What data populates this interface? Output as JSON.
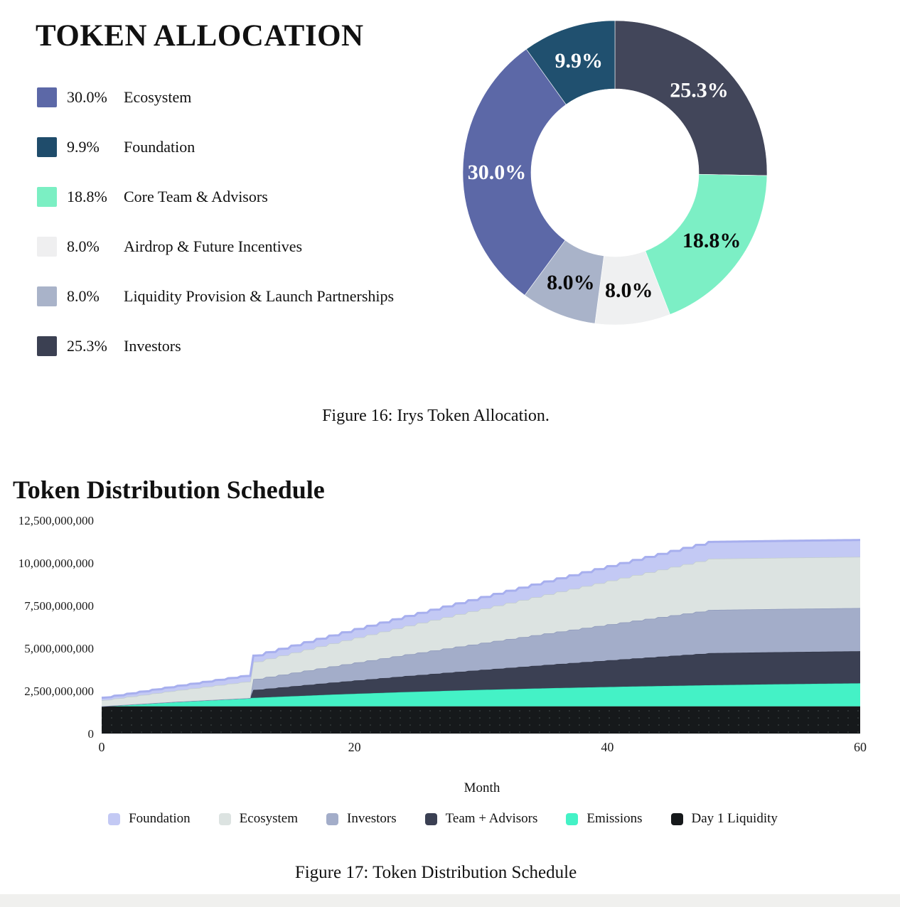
{
  "allocation": {
    "title": "TOKEN ALLOCATION",
    "caption": "Figure 16: Irys Token Allocation.",
    "legend": [
      {
        "pct": "30.0%",
        "label": "Ecosystem",
        "color": "#5C68A7"
      },
      {
        "pct": "9.9%",
        "label": "Foundation",
        "color": "#1F4C6B"
      },
      {
        "pct": "18.8%",
        "label": "Core Team & Advisors",
        "color": "#7BEFC3"
      },
      {
        "pct": "8.0%",
        "label": "Airdrop & Future Incentives",
        "color": "#EFEFF0"
      },
      {
        "pct": "8.0%",
        "label": "Liquidity Provision & Launch Partnerships",
        "color": "#A9B3C9"
      },
      {
        "pct": "25.3%",
        "label": "Investors",
        "color": "#3B4052"
      }
    ]
  },
  "schedule": {
    "title": "Token Distribution Schedule",
    "caption": "Figure 17: Token Distribution Schedule",
    "xlabel": "Month"
  },
  "chart_data": [
    {
      "type": "pie",
      "donut": true,
      "title": "TOKEN ALLOCATION",
      "legend_position": "left",
      "slices_clockwise_from_top": [
        {
          "label": "Investors",
          "value": 25.3,
          "pct_label": "25.3%",
          "color": "#42465A",
          "label_color": "#ffffff"
        },
        {
          "label": "Core Team & Advisors",
          "value": 18.8,
          "pct_label": "18.8%",
          "color": "#7CEFC5",
          "label_color": "#0a0a0a"
        },
        {
          "label": "Airdrop & Future Incentives",
          "value": 8.0,
          "pct_label": "8.0%",
          "color": "#EFF0F1",
          "label_color": "#0a0a0a"
        },
        {
          "label": "Liquidity Provision & Launch Partnerships",
          "value": 8.0,
          "pct_label": "8.0%",
          "color": "#A9B3C9",
          "label_color": "#0a0a0a"
        },
        {
          "label": "Ecosystem",
          "value": 30.0,
          "pct_label": "30.0%",
          "color": "#5C68A7",
          "label_color": "#ffffff"
        },
        {
          "label": "Foundation",
          "value": 9.9,
          "pct_label": "9.9%",
          "color": "#20506F",
          "label_color": "#ffffff"
        }
      ]
    },
    {
      "type": "area",
      "stacked": true,
      "title": "Token Distribution Schedule",
      "xlabel": "Month",
      "ylabel": "",
      "xlim": [
        0,
        60
      ],
      "ylim": [
        0,
        12500000000
      ],
      "grid": false,
      "legend_position": "bottom",
      "values_unit": "billions_of_tokens",
      "x_ticks": [
        {
          "value": 0,
          "label": "0"
        },
        {
          "value": 20,
          "label": "20"
        },
        {
          "value": 40,
          "label": "40"
        },
        {
          "value": 60,
          "label": "60"
        }
      ],
      "y_ticks": [
        {
          "value": 0.0,
          "label": "0"
        },
        {
          "value": 2.5,
          "label": "2,500,000,000"
        },
        {
          "value": 5.0,
          "label": "5,000,000,000"
        },
        {
          "value": 7.5,
          "label": "7,500,000,000"
        },
        {
          "value": 10.0,
          "label": "10,000,000,000"
        },
        {
          "value": 12.5,
          "label": "12,500,000,000"
        }
      ],
      "series_bottom_to_top": [
        {
          "name": "Day 1 Liquidity",
          "color": "#16191B",
          "stroke": "#16191B",
          "stroke_w": 0,
          "interp": "linear",
          "dotted_texture": true,
          "anchors": [
            [
              0,
              1.6
            ],
            [
              60,
              1.6
            ]
          ]
        },
        {
          "name": "Emissions",
          "color": "#44F2C6",
          "stroke": "#2EDDB2",
          "stroke_w": 1,
          "interp": "linear",
          "anchors": [
            [
              0,
              0
            ],
            [
              6,
              0.268
            ],
            [
              12,
              0.492
            ],
            [
              18,
              0.678
            ],
            [
              24,
              0.833
            ],
            [
              30,
              0.962
            ],
            [
              36,
              1.07
            ],
            [
              42,
              1.159
            ],
            [
              48,
              1.234
            ],
            [
              54,
              1.296
            ],
            [
              60,
              1.347
            ]
          ]
        },
        {
          "name": "Team + Advisors",
          "color": "#3B4053",
          "stroke": "#333748",
          "stroke_w": 1.5,
          "interp": "step",
          "anchors": [
            [
              0,
              0
            ],
            [
              11,
              0
            ],
            [
              12,
              0.47
            ],
            [
              48,
              1.88
            ],
            [
              60,
              1.88
            ]
          ]
        },
        {
          "name": "Investors",
          "color": "#A3ADC9",
          "stroke": "#8D98BA",
          "stroke_w": 1.5,
          "interp": "step",
          "anchors": [
            [
              0,
              0
            ],
            [
              11,
              0
            ],
            [
              12,
              0.633
            ],
            [
              48,
              2.53
            ],
            [
              60,
              2.53
            ]
          ]
        },
        {
          "name": "Ecosystem",
          "color": "#DCE3E1",
          "stroke": "#C3CECC",
          "stroke_w": 1.5,
          "interp": "step",
          "anchors": [
            [
              0,
              0.35
            ],
            [
              48,
              3.0
            ],
            [
              60,
              3.0
            ]
          ]
        },
        {
          "name": "Foundation",
          "color": "#C3C9F4",
          "stroke": "#A7AFEE",
          "stroke_w": 3,
          "interp": "step",
          "anchors": [
            [
              0,
              0.15
            ],
            [
              48,
              0.99
            ],
            [
              60,
              0.99
            ]
          ]
        }
      ],
      "legend_entries": [
        "Foundation",
        "Ecosystem",
        "Investors",
        "Team + Advisors",
        "Emissions",
        "Day 1 Liquidity"
      ],
      "legend_colors": [
        "#C3C9F4",
        "#DCE3E1",
        "#A3ADC9",
        "#3B4053",
        "#44F2C6",
        "#16191B"
      ]
    }
  ]
}
